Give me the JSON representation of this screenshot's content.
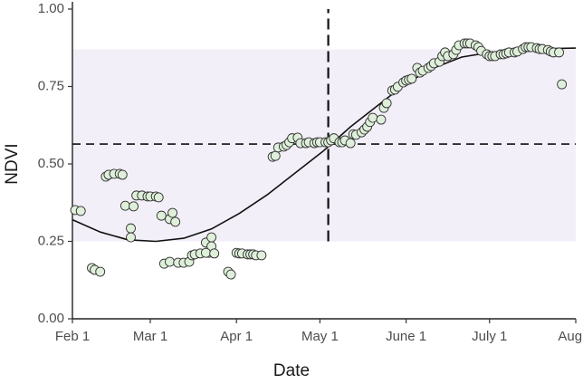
{
  "chart_data": {
    "type": "scatter",
    "xlabel": "Date",
    "ylabel": "NDVI",
    "color": "#dff0da",
    "x": [
      33,
      35,
      39,
      40,
      42,
      44,
      45,
      47,
      49,
      50,
      51,
      53,
      53,
      54,
      55,
      57,
      59,
      60,
      62,
      63,
      64,
      67,
      68,
      69,
      65,
      67,
      70,
      72,
      74,
      75,
      76,
      78,
      80,
      81,
      82,
      80,
      82,
      83,
      88,
      89,
      91,
      92,
      93,
      95,
      96,
      97,
      98,
      100,
      104,
      105,
      106,
      108,
      109,
      110,
      111,
      113,
      114,
      116,
      117,
      119,
      120,
      121,
      123,
      124,
      125,
      126,
      128,
      129,
      130,
      132,
      133,
      134,
      136,
      137,
      138,
      139,
      140,
      143,
      144,
      145,
      147,
      148,
      149,
      151,
      152,
      153,
      154,
      156,
      157,
      158,
      160,
      161,
      162,
      164,
      165,
      166,
      167,
      169,
      170,
      171,
      173,
      174,
      175,
      177,
      178,
      179,
      181,
      182,
      183,
      184,
      186,
      187,
      188,
      189,
      191,
      192,
      194,
      195,
      196,
      197,
      199,
      200,
      201,
      203,
      204,
      205,
      207,
      208
    ],
    "values": [
      0.351,
      0.348,
      0.164,
      0.158,
      0.152,
      0.459,
      0.465,
      0.468,
      0.468,
      0.465,
      0.365,
      0.292,
      0.263,
      0.363,
      0.398,
      0.398,
      0.395,
      0.395,
      0.395,
      0.392,
      0.333,
      0.322,
      0.342,
      0.313,
      0.178,
      0.184,
      0.181,
      0.181,
      0.184,
      0.205,
      0.208,
      0.211,
      0.246,
      0.213,
      0.234,
      0.213,
      0.263,
      0.211,
      0.152,
      0.143,
      0.213,
      0.211,
      0.211,
      0.208,
      0.208,
      0.208,
      0.205,
      0.205,
      0.523,
      0.526,
      0.553,
      0.556,
      0.561,
      0.57,
      0.583,
      0.585,
      0.567,
      0.567,
      0.57,
      0.567,
      0.57,
      0.57,
      0.57,
      0.57,
      0.576,
      0.583,
      0.57,
      0.57,
      0.576,
      0.567,
      0.596,
      0.594,
      0.602,
      0.611,
      0.62,
      0.635,
      0.649,
      0.643,
      0.681,
      0.696,
      0.737,
      0.74,
      0.749,
      0.763,
      0.769,
      0.772,
      0.775,
      0.81,
      0.795,
      0.801,
      0.81,
      0.816,
      0.825,
      0.83,
      0.848,
      0.86,
      0.848,
      0.854,
      0.868,
      0.883,
      0.889,
      0.889,
      0.889,
      0.883,
      0.877,
      0.865,
      0.854,
      0.848,
      0.848,
      0.848,
      0.854,
      0.854,
      0.857,
      0.86,
      0.86,
      0.863,
      0.871,
      0.877,
      0.877,
      0.877,
      0.874,
      0.871,
      0.871,
      0.868,
      0.863,
      0.86,
      0.86,
      0.757
    ],
    "fit": {
      "x": [
        32,
        42,
        52,
        62,
        72,
        82,
        92,
        102,
        112,
        122,
        132,
        142,
        152,
        162,
        172,
        182,
        192,
        202,
        213
      ],
      "values": [
        0.32,
        0.28,
        0.255,
        0.25,
        0.26,
        0.29,
        0.34,
        0.4,
        0.47,
        0.54,
        0.62,
        0.69,
        0.76,
        0.81,
        0.845,
        0.86,
        0.868,
        0.872,
        0.874
      ]
    },
    "band": [
      0.25,
      0.87
    ],
    "hline": 0.564,
    "vline": 124,
    "xlim": [
      32,
      213
    ],
    "ylim": [
      0,
      1
    ],
    "xticks": [
      {
        "value": 32,
        "label": "Feb 1"
      },
      {
        "value": 60,
        "label": "Mar 1"
      },
      {
        "value": 91,
        "label": "Apr 1"
      },
      {
        "value": 121,
        "label": "May 1"
      },
      {
        "value": 152,
        "label": "June 1"
      },
      {
        "value": 182,
        "label": "July 1"
      },
      {
        "value": 213,
        "label": "Aug 1"
      }
    ],
    "yticks": [
      {
        "value": 0,
        "label": "0.00"
      },
      {
        "value": 0.25,
        "label": "0.25"
      },
      {
        "value": 0.5,
        "label": "0.50"
      },
      {
        "value": 0.75,
        "label": "0.75"
      },
      {
        "value": 1,
        "label": "1.00"
      }
    ]
  }
}
